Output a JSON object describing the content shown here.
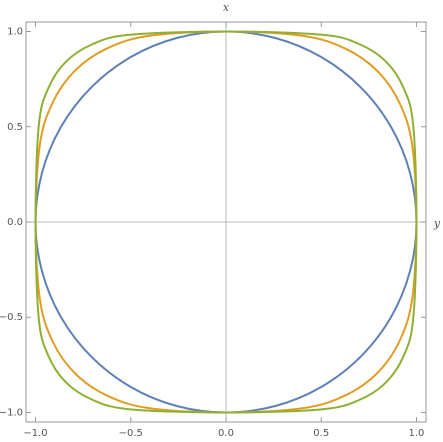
{
  "chart_data": {
    "type": "line",
    "xlabel": "y",
    "ylabel": "x",
    "xlim": [
      -1.05,
      1.05
    ],
    "ylim": [
      -1.05,
      1.05
    ],
    "xticks": [
      {
        "value": -1,
        "label": "−1.0"
      },
      {
        "value": -0.5,
        "label": "−0.5"
      },
      {
        "value": 0,
        "label": "0.0"
      },
      {
        "value": 0.5,
        "label": "0.5"
      },
      {
        "value": 1,
        "label": "1.0"
      }
    ],
    "yticks": [
      {
        "value": -1,
        "label": "−1.0"
      },
      {
        "value": -0.5,
        "label": "−0.5"
      },
      {
        "value": 0,
        "label": "0.0"
      },
      {
        "value": 0.5,
        "label": "0.5"
      },
      {
        "value": 1,
        "label": "1.0"
      }
    ],
    "series": [
      {
        "color": "#5e81b5",
        "x": [
          1,
          0.9659,
          0.866,
          0.7071,
          0.5,
          0.2588,
          0,
          -0.2588,
          -0.5,
          -0.7071,
          -0.866,
          -0.9659,
          -1,
          -0.9659,
          -0.866,
          -0.7071,
          -0.5,
          -0.2588,
          0,
          0.2588,
          0.5,
          0.7071,
          0.866,
          0.9659
        ],
        "values": [
          0,
          0.2588,
          0.5,
          0.7071,
          0.866,
          0.9659,
          1,
          0.9659,
          0.866,
          0.7071,
          0.5,
          0.2588,
          0,
          -0.2588,
          -0.5,
          -0.7071,
          -0.866,
          -0.9659,
          -1,
          -0.9659,
          -0.866,
          -0.7071,
          -0.5,
          -0.2588
        ]
      },
      {
        "color": "#e19c24",
        "x": [
          1,
          0.9771,
          0.9086,
          0.7937,
          0.63,
          0.4061,
          0,
          -0.4061,
          -0.63,
          -0.7937,
          -0.9086,
          -0.9771,
          -1,
          -0.9771,
          -0.9086,
          -0.7937,
          -0.63,
          -0.4061,
          0,
          0.4061,
          0.63,
          0.7937,
          0.9086,
          0.9771
        ],
        "values": [
          0,
          0.4061,
          0.63,
          0.7937,
          0.9086,
          0.9771,
          1,
          0.9771,
          0.9086,
          0.7937,
          0.63,
          0.4061,
          0,
          -0.4061,
          -0.63,
          -0.7937,
          -0.9086,
          -0.9771,
          -1,
          -0.9771,
          -0.9086,
          -0.7937,
          -0.63,
          -0.4061
        ]
      },
      {
        "color": "#8fb032",
        "x": [
          1,
          0.9828,
          0.9306,
          0.8409,
          0.7071,
          0.5087,
          0,
          -0.5087,
          -0.7071,
          -0.8409,
          -0.9306,
          -0.9828,
          -1,
          -0.9828,
          -0.9306,
          -0.8409,
          -0.7071,
          -0.5087,
          0,
          0.5087,
          0.7071,
          0.8409,
          0.9306,
          0.9828
        ],
        "values": [
          0,
          0.5087,
          0.7071,
          0.8409,
          0.9306,
          0.9828,
          1,
          0.9828,
          0.9306,
          0.8409,
          0.7071,
          0.5087,
          0,
          -0.5087,
          -0.7071,
          -0.8409,
          -0.9306,
          -0.9828,
          -1,
          -0.9828,
          -0.9306,
          -0.8409,
          -0.7071,
          -0.5087
        ]
      }
    ]
  }
}
